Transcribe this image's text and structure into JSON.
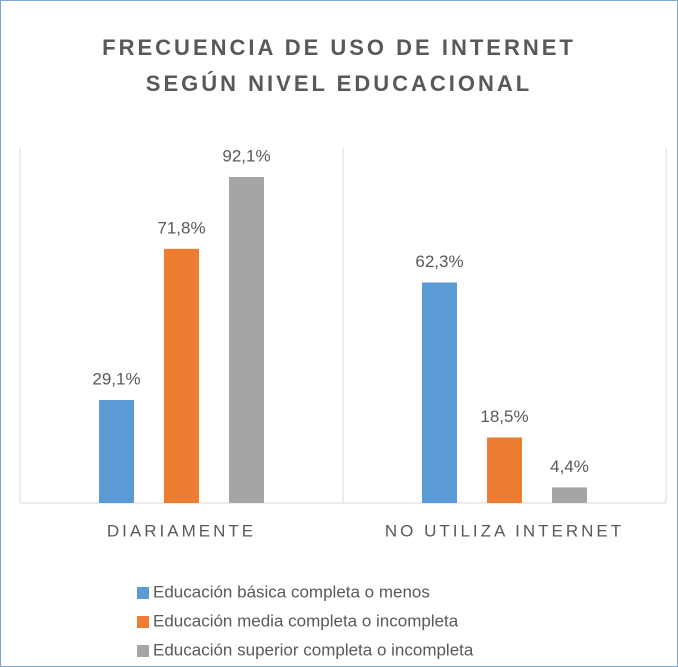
{
  "chart_data": {
    "type": "bar",
    "title": "FRECUENCIA DE USO DE INTERNET SEGÚN NIVEL EDUCACIONAL",
    "categories": [
      "DIARIAMENTE",
      "NO UTILIZA INTERNET"
    ],
    "series": [
      {
        "name": "Educación básica completa o menos",
        "color": "#5b9bd5",
        "values": [
          29.1,
          62.3
        ],
        "value_labels": [
          "29,1%",
          "62,3%"
        ]
      },
      {
        "name": "Educación media completa o incompleta",
        "color": "#ed7d31",
        "values": [
          71.8,
          18.5
        ],
        "value_labels": [
          "71,8%",
          "18,5%"
        ]
      },
      {
        "name": "Educación superior completa o incompleta",
        "color": "#a5a5a5",
        "values": [
          92.1,
          4.4
        ],
        "value_labels": [
          "92,1%",
          "4,4%"
        ]
      }
    ],
    "ylim": [
      0,
      100
    ]
  }
}
